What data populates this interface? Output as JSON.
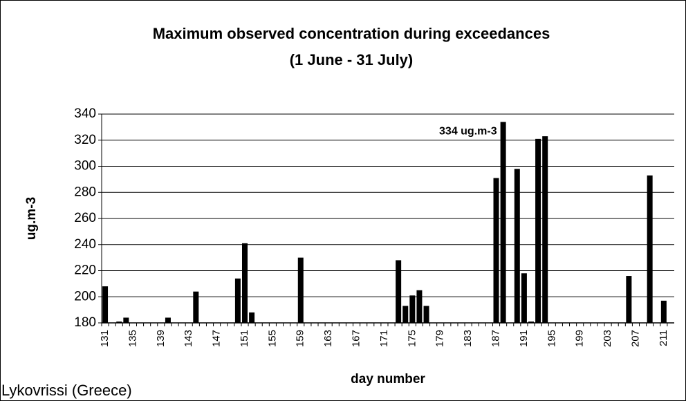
{
  "chart_data": {
    "type": "bar",
    "title": "Maximum observed concentration during exceedances",
    "subtitle": "(1 June - 31 July)",
    "x_label": "day number",
    "y_label": "ug.m-3",
    "footnote": "Lykovrissi (Greece)",
    "color": "#000000",
    "grid": true,
    "ylim": [
      180,
      340
    ],
    "yticks": [
      180,
      200,
      220,
      240,
      260,
      280,
      300,
      320,
      340
    ],
    "categories": [
      "131",
      null,
      null,
      null,
      "135",
      null,
      null,
      null,
      "139",
      null,
      null,
      null,
      "143",
      null,
      null,
      null,
      "147",
      null,
      null,
      null,
      "151",
      null,
      null,
      null,
      "155",
      null,
      null,
      null,
      "159",
      null,
      null,
      null,
      "163",
      null,
      null,
      null,
      "167",
      null,
      null,
      null,
      "171",
      null,
      null,
      null,
      "175",
      null,
      null,
      null,
      "179",
      null,
      null,
      null,
      "183",
      null,
      null,
      null,
      "187",
      null,
      null,
      null,
      "191",
      null,
      null,
      null,
      "195",
      null,
      null,
      null,
      "199",
      null,
      null,
      null,
      "203",
      null,
      null,
      null,
      "207",
      null,
      null,
      null,
      "211",
      null
    ],
    "values": [
      208,
      null,
      181,
      184,
      null,
      null,
      null,
      null,
      null,
      184,
      null,
      null,
      null,
      204,
      null,
      null,
      null,
      null,
      null,
      214,
      241,
      188,
      null,
      null,
      null,
      null,
      null,
      null,
      230,
      null,
      null,
      null,
      null,
      null,
      null,
      null,
      null,
      null,
      null,
      null,
      null,
      null,
      228,
      193,
      201,
      205,
      193,
      null,
      null,
      null,
      null,
      null,
      null,
      null,
      null,
      null,
      291,
      334,
      null,
      298,
      218,
      181,
      321,
      323,
      null,
      null,
      null,
      null,
      null,
      null,
      null,
      null,
      null,
      null,
      null,
      216,
      null,
      null,
      293,
      null,
      197,
      null
    ],
    "value_labels": [
      null,
      null,
      null,
      null,
      null,
      null,
      null,
      null,
      null,
      null,
      null,
      null,
      null,
      null,
      null,
      null,
      null,
      null,
      null,
      null,
      null,
      null,
      null,
      null,
      null,
      null,
      null,
      null,
      null,
      null,
      null,
      null,
      null,
      null,
      null,
      null,
      null,
      null,
      null,
      null,
      null,
      null,
      null,
      null,
      null,
      null,
      null,
      null,
      null,
      null,
      null,
      null,
      null,
      null,
      null,
      null,
      null,
      "334 ug.m-3",
      null,
      null,
      null,
      null,
      null,
      null,
      null,
      null,
      null,
      null,
      null,
      null,
      null,
      null,
      null,
      null,
      null,
      null,
      null,
      null,
      null,
      null,
      null,
      null
    ]
  }
}
